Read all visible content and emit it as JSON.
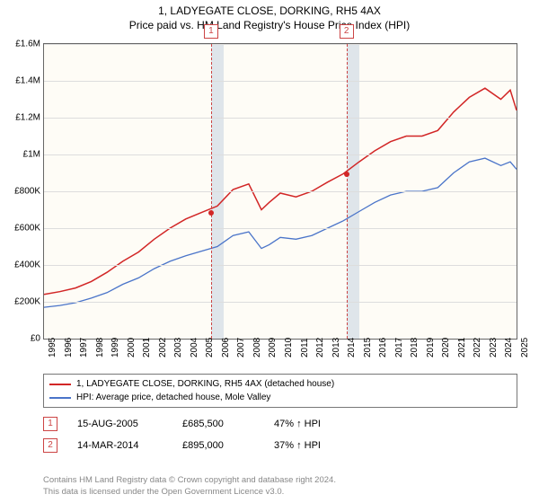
{
  "title_line1": "1, LADYEGATE CLOSE, DORKING, RH5 4AX",
  "title_line2": "Price paid vs. HM Land Registry's House Price Index (HPI)",
  "chart": {
    "type": "line",
    "background_color": "#fefcf6",
    "grid_color": "#dddddd",
    "border_color": "#666666",
    "shade_color": "#dfe5ea",
    "ylim": [
      0,
      1600000
    ],
    "ytick_step": 200000,
    "yticks": [
      "£0",
      "£200K",
      "£400K",
      "£600K",
      "£800K",
      "£1M",
      "£1.2M",
      "£1.4M",
      "£1.6M"
    ],
    "xlim": [
      1995,
      2025
    ],
    "xticks": [
      1995,
      1996,
      1997,
      1998,
      1999,
      2000,
      2001,
      2002,
      2003,
      2004,
      2005,
      2006,
      2007,
      2008,
      2009,
      2010,
      2011,
      2012,
      2013,
      2014,
      2015,
      2016,
      2017,
      2018,
      2019,
      2020,
      2021,
      2022,
      2023,
      2024,
      2025
    ],
    "shade_ranges": [
      [
        2005.6,
        2006.4
      ],
      [
        2014.2,
        2015.0
      ]
    ],
    "series": [
      {
        "name": "1, LADYEGATE CLOSE, DORKING, RH5 4AX (detached house)",
        "color": "#d22626",
        "width": 1.5,
        "data": [
          [
            1995,
            240000
          ],
          [
            1996,
            255000
          ],
          [
            1997,
            275000
          ],
          [
            1998,
            310000
          ],
          [
            1999,
            360000
          ],
          [
            2000,
            420000
          ],
          [
            2001,
            470000
          ],
          [
            2002,
            540000
          ],
          [
            2003,
            600000
          ],
          [
            2004,
            650000
          ],
          [
            2005,
            685000
          ],
          [
            2006,
            720000
          ],
          [
            2007,
            810000
          ],
          [
            2008,
            840000
          ],
          [
            2008.8,
            700000
          ],
          [
            2009.3,
            740000
          ],
          [
            2010,
            790000
          ],
          [
            2011,
            770000
          ],
          [
            2012,
            800000
          ],
          [
            2013,
            850000
          ],
          [
            2014,
            895000
          ],
          [
            2015,
            960000
          ],
          [
            2016,
            1020000
          ],
          [
            2017,
            1070000
          ],
          [
            2018,
            1100000
          ],
          [
            2019,
            1100000
          ],
          [
            2020,
            1130000
          ],
          [
            2021,
            1230000
          ],
          [
            2022,
            1310000
          ],
          [
            2023,
            1360000
          ],
          [
            2024,
            1300000
          ],
          [
            2024.6,
            1350000
          ],
          [
            2025,
            1240000
          ]
        ]
      },
      {
        "name": "HPI: Average price, detached house, Mole Valley",
        "color": "#4a74c9",
        "width": 1.3,
        "data": [
          [
            1995,
            170000
          ],
          [
            1996,
            180000
          ],
          [
            1997,
            195000
          ],
          [
            1998,
            220000
          ],
          [
            1999,
            250000
          ],
          [
            2000,
            295000
          ],
          [
            2001,
            330000
          ],
          [
            2002,
            380000
          ],
          [
            2003,
            420000
          ],
          [
            2004,
            450000
          ],
          [
            2005,
            475000
          ],
          [
            2006,
            500000
          ],
          [
            2007,
            560000
          ],
          [
            2008,
            580000
          ],
          [
            2008.8,
            490000
          ],
          [
            2009.3,
            510000
          ],
          [
            2010,
            550000
          ],
          [
            2011,
            540000
          ],
          [
            2012,
            560000
          ],
          [
            2013,
            600000
          ],
          [
            2014,
            640000
          ],
          [
            2015,
            690000
          ],
          [
            2016,
            740000
          ],
          [
            2017,
            780000
          ],
          [
            2018,
            800000
          ],
          [
            2019,
            800000
          ],
          [
            2020,
            820000
          ],
          [
            2021,
            900000
          ],
          [
            2022,
            960000
          ],
          [
            2023,
            980000
          ],
          [
            2024,
            940000
          ],
          [
            2024.6,
            960000
          ],
          [
            2025,
            920000
          ]
        ]
      }
    ],
    "markers": [
      {
        "label": "1",
        "x": 2005.6,
        "y": 685000,
        "color": "#d22626"
      },
      {
        "label": "2",
        "x": 2014.2,
        "y": 895000,
        "color": "#d22626"
      }
    ]
  },
  "legend": [
    {
      "color": "#d22626",
      "label": "1, LADYEGATE CLOSE, DORKING, RH5 4AX (detached house)"
    },
    {
      "color": "#4a74c9",
      "label": "HPI: Average price, detached house, Mole Valley"
    }
  ],
  "sales": [
    {
      "n": "1",
      "date": "15-AUG-2005",
      "price": "£685,500",
      "pct": "47% ↑ HPI"
    },
    {
      "n": "2",
      "date": "14-MAR-2014",
      "price": "£895,000",
      "pct": "37% ↑ HPI"
    }
  ],
  "footer_line1": "Contains HM Land Registry data © Crown copyright and database right 2024.",
  "footer_line2": "This data is licensed under the Open Government Licence v3.0."
}
